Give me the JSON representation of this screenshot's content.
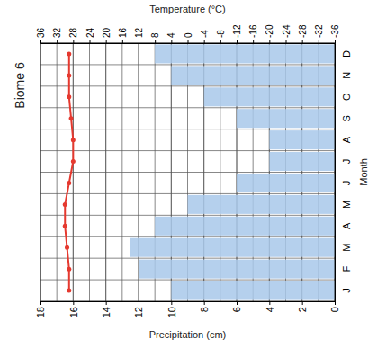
{
  "chart_data": {
    "type": "bar",
    "title": "Biome 6",
    "orientation": "horizontal",
    "x_label": "Month",
    "y_label": "Precipitation (cm)",
    "y2_label": "Temperature (°C)",
    "categories": [
      "J",
      "F",
      "M",
      "A",
      "M",
      "J",
      "J",
      "A",
      "S",
      "O",
      "N",
      "D"
    ],
    "series": [
      {
        "type": "bar",
        "color": "#a8c8ea",
        "values": [
          10,
          12,
          12.5,
          11,
          9,
          6,
          4,
          4,
          6,
          8,
          10,
          11
        ]
      },
      {
        "type": "line",
        "axis": "y2",
        "color": "#e5392f",
        "marker": "circle",
        "values": [
          29,
          29,
          29.5,
          30,
          30,
          29,
          28,
          28,
          28.5,
          29,
          29,
          29
        ]
      }
    ],
    "ylim": [
      0,
      18
    ],
    "yticks": [
      0,
      2,
      4,
      6,
      8,
      10,
      12,
      14,
      16,
      18
    ],
    "y2lim": [
      -36,
      36
    ],
    "y2ticks": [
      -36,
      -32,
      -28,
      -24,
      -20,
      -16,
      -12,
      -8,
      -4,
      0,
      4,
      8,
      12,
      16,
      20,
      24,
      28,
      32,
      36
    ],
    "grid": true
  }
}
